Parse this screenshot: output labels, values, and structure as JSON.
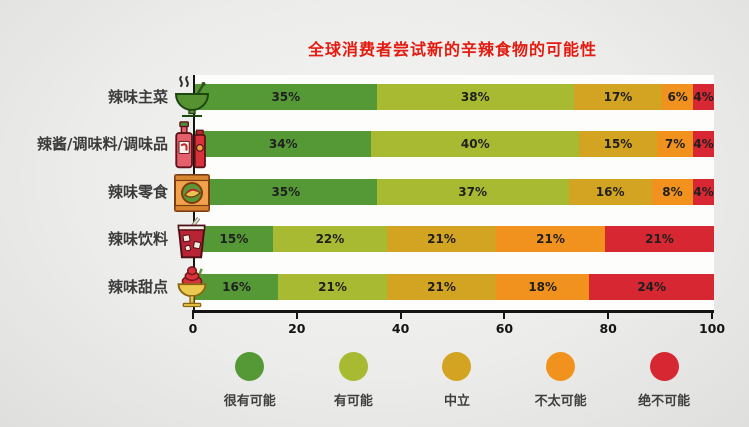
{
  "title": "全球消费者尝试新的辛辣食物的可能性",
  "title_color": "#e31b10",
  "chart_data": {
    "type": "bar",
    "stacked": true,
    "orientation": "horizontal",
    "title": "全球消费者尝试新的辛辣食物的可能性",
    "categories": [
      "辣味主菜",
      "辣酱/调味料/调味品",
      "辣味零食",
      "辣味饮料",
      "辣味甜点"
    ],
    "category_icons": [
      "soup-bowl-icon",
      "sauce-bottles-icon",
      "snack-bag-icon",
      "drink-glass-icon",
      "dessert-sundae-icon"
    ],
    "series": [
      {
        "name": "很有可能",
        "color": "#559937",
        "values": [
          35,
          34,
          35,
          15,
          16
        ]
      },
      {
        "name": "有可能",
        "color": "#a8ba31",
        "values": [
          38,
          40,
          37,
          22,
          21
        ]
      },
      {
        "name": "中立",
        "color": "#d3a421",
        "values": [
          17,
          15,
          16,
          21,
          21
        ]
      },
      {
        "name": "不太可能",
        "color": "#f2921e",
        "values": [
          6,
          7,
          8,
          21,
          18
        ]
      },
      {
        "name": "绝不可能",
        "color": "#d62733",
        "values": [
          4,
          4,
          4,
          21,
          24
        ]
      }
    ],
    "value_suffix": "%",
    "x_ticks": [
      0,
      20,
      40,
      60,
      80,
      100
    ],
    "xlim": [
      0,
      100
    ],
    "legend_position": "bottom",
    "legend_labels": [
      "很有可能",
      "有可能",
      "中立",
      "不太可能",
      "绝不可能"
    ]
  }
}
